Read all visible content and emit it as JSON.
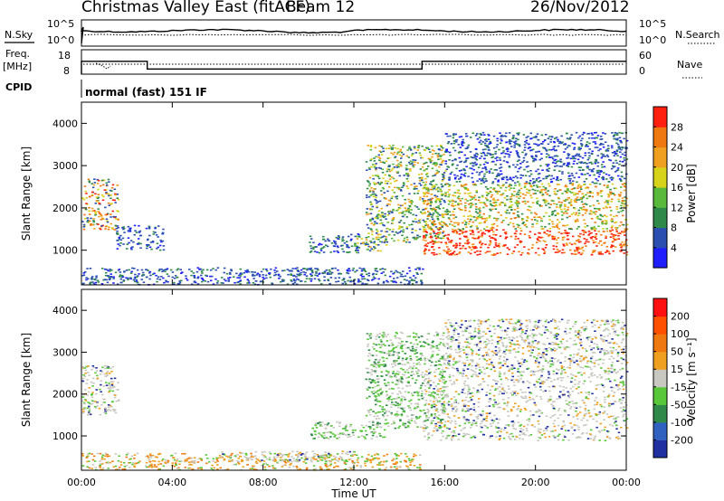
{
  "header": {
    "radar": "Christmas Valley East (fitACF)",
    "beam": "Beam 12",
    "date": "26/Nov/2012"
  },
  "param_panels": {
    "nsky_label": "N.Sky",
    "nsearch_label": "N.Search",
    "nsky_ticks": [
      "10^5",
      "10^0"
    ],
    "nsearch_ticks": [
      "10^5",
      "10^0"
    ],
    "freq_label": "Freq.",
    "freq_unit": "[MHz]",
    "freq_ticks": [
      "18",
      "8"
    ],
    "nave_label": "Nave",
    "nave_ticks": [
      "60",
      "0"
    ],
    "cpid_label": "CPID",
    "cpid_value": "normal (fast) 151 IF"
  },
  "axes": {
    "xlabel": "Time UT",
    "ylabel": "Slant Range [km]",
    "x_ticks": [
      "00:00",
      "04:00",
      "08:00",
      "12:00",
      "16:00",
      "20:00",
      "00:00"
    ],
    "y_ticks": [
      "1000",
      "2000",
      "3000",
      "4000"
    ]
  },
  "colorbars": {
    "power": {
      "label": "Power [dB]",
      "ticks": [
        "4",
        "8",
        "12",
        "16",
        "20",
        "24",
        "28"
      ],
      "colors": [
        "#1e1eff",
        "#2a4fb0",
        "#2f8a4a",
        "#58b93a",
        "#d6d31a",
        "#f0a020",
        "#f07810",
        "#ff2010"
      ]
    },
    "velocity": {
      "label": "Velocity [m s⁻¹]",
      "ticks": [
        "200",
        "100",
        "50",
        "15",
        "-15",
        "-50",
        "-100",
        "-200"
      ],
      "colors": [
        "#2030a0",
        "#3060c0",
        "#2f8a4a",
        "#58c83a",
        "#c8c8c0",
        "#f0a020",
        "#f07810",
        "#ff5000",
        "#ff1010"
      ]
    }
  },
  "chart_data": {
    "type": "heatmap",
    "x_range_hours": [
      0,
      24
    ],
    "y_range_km": [
      180,
      4500
    ],
    "power_regions": [
      {
        "t": [
          0.0,
          1.6
        ],
        "r": [
          1500,
          2700
        ],
        "level": "mixed-high"
      },
      {
        "t": [
          1.5,
          2.6
        ],
        "r": [
          1000,
          1600
        ],
        "level": "low"
      },
      {
        "t": [
          2.8,
          3.6
        ],
        "r": [
          1000,
          1600
        ],
        "level": "low"
      },
      {
        "t": [
          0.0,
          15.0
        ],
        "r": [
          200,
          600
        ],
        "level": "low"
      },
      {
        "t": [
          9.0,
          11.0
        ],
        "r": [
          400,
          600
        ],
        "level": "low"
      },
      {
        "t": [
          10.0,
          12.2
        ],
        "r": [
          950,
          1400
        ],
        "level": "low"
      },
      {
        "t": [
          12.0,
          13.4
        ],
        "r": [
          950,
          1350
        ],
        "level": "mixed"
      },
      {
        "t": [
          12.5,
          16.0
        ],
        "r": [
          1200,
          3500
        ],
        "level": "mixed"
      },
      {
        "t": [
          15.0,
          24.0
        ],
        "r": [
          900,
          1500
        ],
        "level": "high"
      },
      {
        "t": [
          15.0,
          24.0
        ],
        "r": [
          1500,
          2600
        ],
        "level": "mid"
      },
      {
        "t": [
          16.0,
          24.0
        ],
        "r": [
          2600,
          3800
        ],
        "level": "low"
      }
    ],
    "velocity_regions": [
      {
        "t": [
          0.0,
          1.6
        ],
        "r": [
          1500,
          2700
        ],
        "level": "near-zero"
      },
      {
        "t": [
          0.0,
          15.0
        ],
        "r": [
          200,
          600
        ],
        "level": "away-moderate"
      },
      {
        "t": [
          6.0,
          12.0
        ],
        "r": [
          400,
          650
        ],
        "level": "near-zero"
      },
      {
        "t": [
          10.0,
          13.4
        ],
        "r": [
          950,
          1350
        ],
        "level": "toward-slow"
      },
      {
        "t": [
          12.5,
          16.0
        ],
        "r": [
          1200,
          3500
        ],
        "level": "toward-slow"
      },
      {
        "t": [
          15.0,
          24.0
        ],
        "r": [
          900,
          2600
        ],
        "level": "near-zero"
      },
      {
        "t": [
          16.0,
          24.0
        ],
        "r": [
          2600,
          3800
        ],
        "level": "near-zero"
      }
    ],
    "frequency_mhz": [
      {
        "t": [
          0,
          2.9
        ],
        "v": 15.5
      },
      {
        "t": [
          2.9,
          15.0
        ],
        "v": 11.0
      },
      {
        "t": [
          15.0,
          24.0
        ],
        "v": 15.5
      }
    ]
  }
}
